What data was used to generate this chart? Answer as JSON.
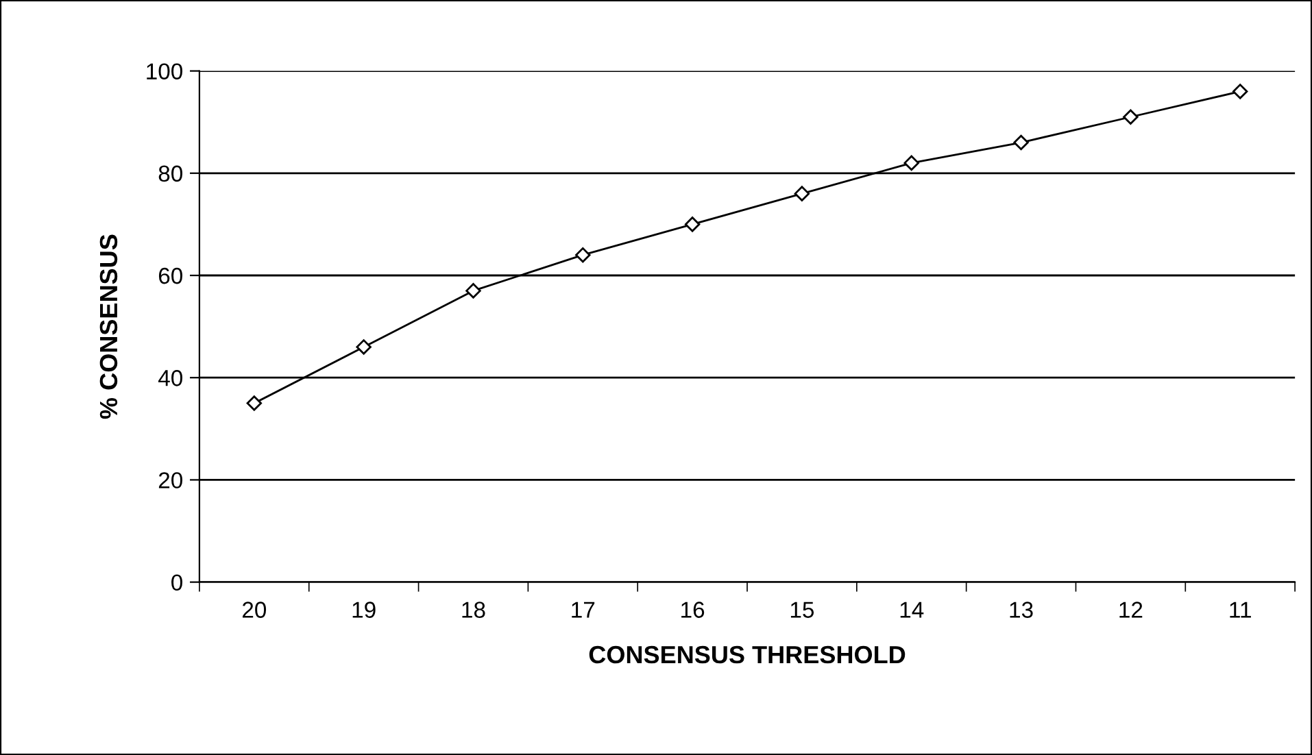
{
  "chart_data": {
    "type": "line",
    "xlabel": "CONSENSUS THRESHOLD",
    "ylabel": "% CONSENSUS",
    "categories": [
      "20",
      "19",
      "18",
      "17",
      "16",
      "15",
      "14",
      "13",
      "12",
      "11"
    ],
    "series": [
      {
        "color": "#000000",
        "values": [
          35,
          46,
          57,
          64,
          70,
          76,
          82,
          86,
          91,
          96
        ]
      }
    ],
    "ylim": [
      0,
      100
    ],
    "yticks": [
      0,
      20,
      40,
      60,
      80,
      100
    ],
    "grid": "y",
    "marker": "diamond",
    "line_style": "solid"
  }
}
